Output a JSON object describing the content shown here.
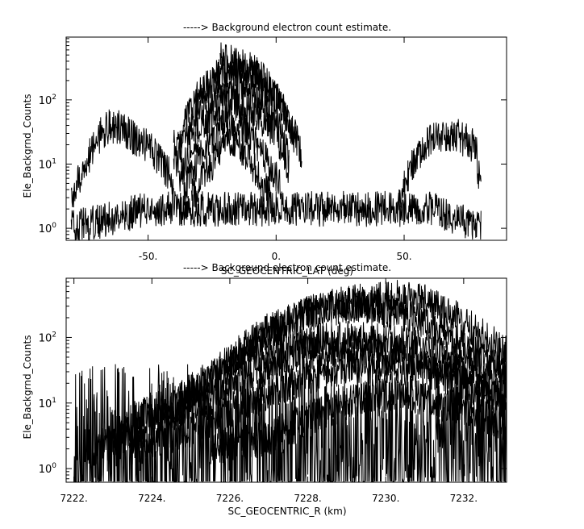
{
  "chart_data": [
    {
      "type": "line",
      "title": "-----> Background electron count estimate.",
      "xlabel": "SC_GEOCENTRIC_LAT (deg)",
      "ylabel": "Ele_Backgrnd_Counts",
      "xlim": [
        -82,
        90
      ],
      "ylim": [
        0.65,
        950
      ],
      "yscale": "log",
      "x_ticks": [
        -50,
        0,
        50
      ],
      "x_ticklabels": [
        "-50.",
        "0.",
        "50."
      ],
      "y_ticks": [
        1,
        10,
        100
      ],
      "y_ticklabels": [
        "10^0",
        "10^1",
        "10^2"
      ],
      "grid": false,
      "color": "#000000",
      "series": [
        {
          "x": [
            -22,
            -10,
            0,
            8
          ],
          "y": [
            450,
            300,
            130,
            20
          ]
        },
        {
          "x": [
            -40,
            -30,
            -20,
            -10,
            0,
            5,
            10
          ],
          "y": [
            18,
            120,
            300,
            260,
            110,
            45,
            15
          ]
        },
        {
          "x": [
            -40,
            -30,
            -20,
            -10,
            0,
            5
          ],
          "y": [
            10,
            60,
            150,
            130,
            55,
            12
          ]
        },
        {
          "x": [
            -38,
            -30,
            -20,
            -10,
            0,
            5
          ],
          "y": [
            6,
            35,
            90,
            75,
            30,
            8
          ]
        },
        {
          "x": [
            -36,
            -28,
            -20,
            -12,
            -5,
            2
          ],
          "y": [
            4,
            18,
            45,
            38,
            15,
            4
          ]
        },
        {
          "x": [
            -33,
            -25,
            -20,
            -15,
            -8,
            -2
          ],
          "y": [
            3,
            10,
            25,
            20,
            8,
            3
          ]
        },
        {
          "x": [
            -80,
            -75,
            -70,
            -65,
            -60,
            -55,
            -50,
            -45,
            -40
          ],
          "y": [
            3,
            8,
            25,
            40,
            35,
            25,
            20,
            10,
            6
          ]
        },
        {
          "x": [
            48,
            55,
            62,
            70,
            78,
            80
          ],
          "y": [
            3,
            15,
            25,
            30,
            18,
            3
          ]
        },
        {
          "x": [
            -80,
            -50,
            -20,
            0,
            20,
            40,
            60,
            80
          ],
          "y": [
            1,
            2,
            2,
            2,
            2,
            2,
            2,
            1
          ]
        }
      ]
    },
    {
      "type": "line",
      "title": "-----> Background electron count estimate.",
      "xlabel": "SC_GEOCENTRIC_R (km)",
      "ylabel": "Ele_Backgrnd_Counts",
      "xlim": [
        7221.8,
        7233.1
      ],
      "ylim": [
        0.62,
        800
      ],
      "yscale": "log",
      "x_ticks": [
        7222,
        7224,
        7226,
        7228,
        7230,
        7232
      ],
      "x_ticklabels": [
        "7222.",
        "7224.",
        "7226.",
        "7228.",
        "7230.",
        "7232."
      ],
      "y_ticks": [
        1,
        10,
        100
      ],
      "y_ticklabels": [
        "10^0",
        "10^1",
        "10^2"
      ],
      "grid": false,
      "color": "#000000",
      "series": [
        {
          "x": [
            7226,
            7227,
            7228,
            7229,
            7230,
            7230.5,
            7231,
            7232,
            7233.1
          ],
          "y": [
            40,
            120,
            230,
            330,
            390,
            400,
            350,
            170,
            60
          ]
        },
        {
          "x": [
            7224.5,
            7226,
            7227,
            7228,
            7229,
            7229.5,
            7230,
            7231,
            7232,
            7233.1
          ],
          "y": [
            6,
            45,
            130,
            230,
            310,
            300,
            260,
            170,
            80,
            30
          ]
        },
        {
          "x": [
            7223,
            7224,
            7225,
            7226,
            7227,
            7228,
            7229,
            7230,
            7231,
            7232,
            7233.1
          ],
          "y": [
            3,
            8,
            16,
            35,
            60,
            85,
            95,
            90,
            70,
            45,
            25
          ]
        },
        {
          "x": [
            7222.5,
            7224,
            7225,
            7226,
            7227,
            7228,
            7229,
            7230,
            7231,
            7232,
            7233.1
          ],
          "y": [
            2,
            5,
            10,
            20,
            35,
            55,
            65,
            60,
            40,
            25,
            12
          ]
        },
        {
          "x": [
            7223.5,
            7225,
            7226,
            7227,
            7228,
            7229,
            7230,
            7231,
            7232,
            7233.1
          ],
          "y": [
            2,
            4,
            8,
            15,
            25,
            35,
            38,
            32,
            20,
            10
          ]
        },
        {
          "x": [
            7225.5,
            7227,
            7228,
            7229,
            7230,
            7231,
            7232,
            7233.1
          ],
          "y": [
            2,
            3,
            6,
            10,
            14,
            12,
            8,
            5
          ]
        },
        {
          "x": [
            7222,
            7224,
            7226,
            7228,
            7230,
            7232,
            7233.1
          ],
          "y": [
            2,
            2,
            2,
            2,
            2,
            2,
            2
          ]
        }
      ]
    }
  ]
}
